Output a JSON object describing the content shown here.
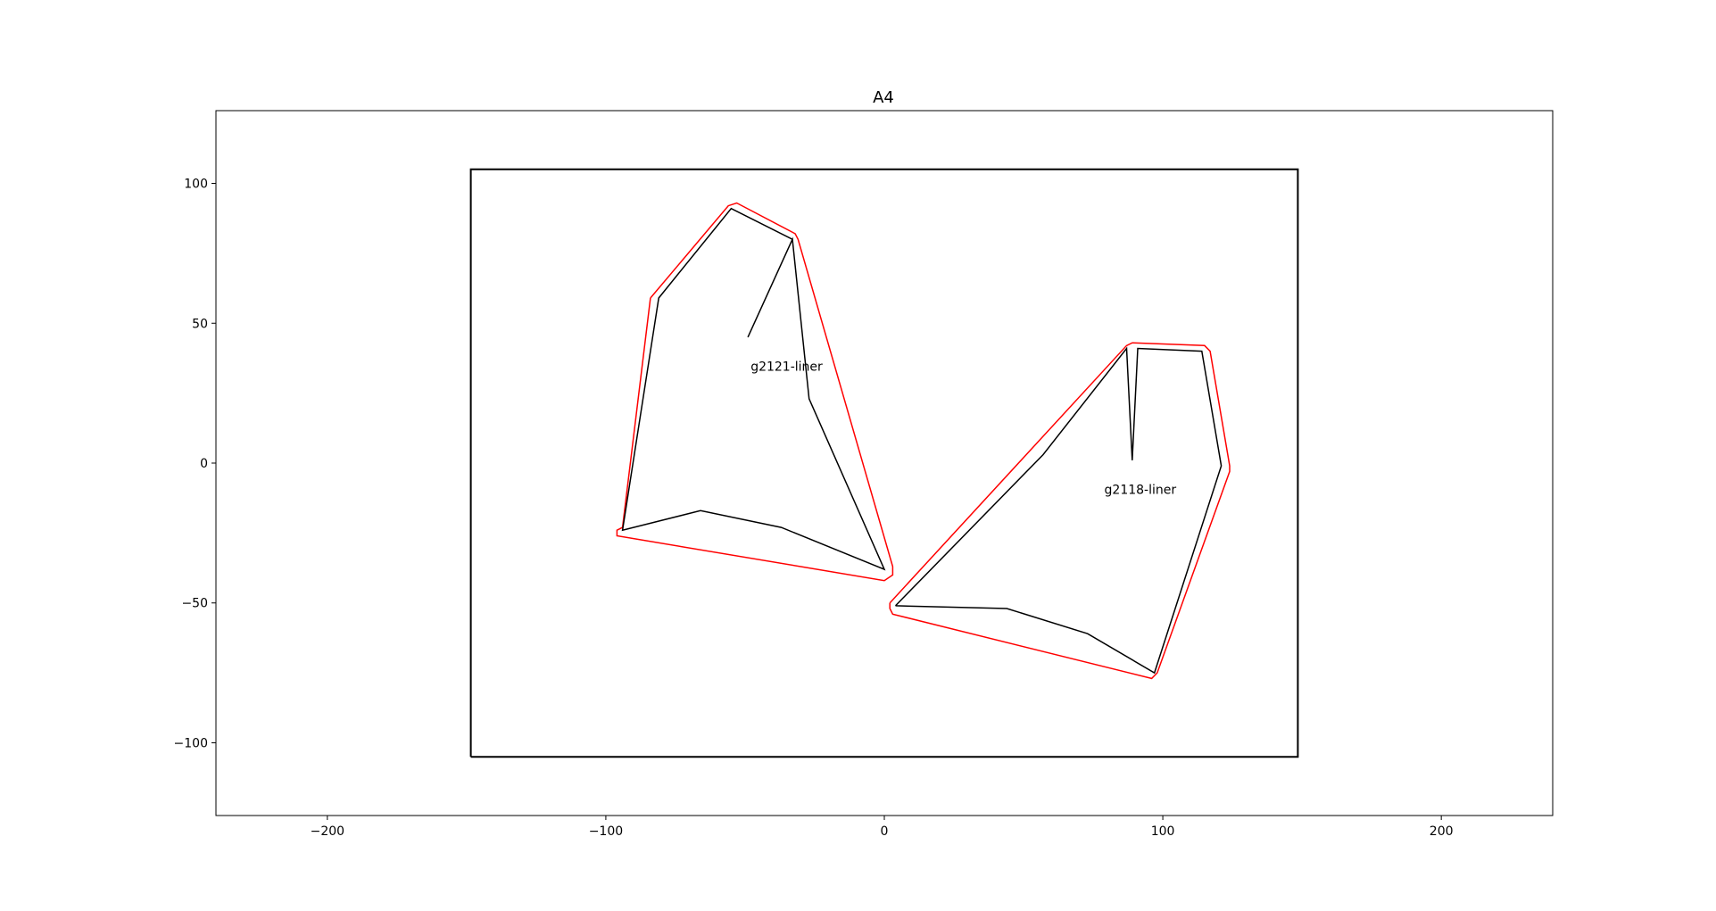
{
  "chart_data": {
    "type": "line",
    "title": "A4",
    "xlabel": "",
    "ylabel": "",
    "xlim": [
      -240,
      240
    ],
    "ylim": [
      -126,
      126
    ],
    "x_ticks": [
      -200,
      -100,
      0,
      100,
      200
    ],
    "x_tick_labels": [
      "−200",
      "−100",
      "0",
      "100",
      "200"
    ],
    "y_ticks": [
      -100,
      -50,
      0,
      50,
      100
    ],
    "y_tick_labels": [
      "−100",
      "−50",
      "0",
      "50",
      "100"
    ],
    "grid": false,
    "legend": "none",
    "colors": {
      "outline": "#000000",
      "offset": "#ff0000",
      "frame": "#000000"
    },
    "series": [
      {
        "kind": "sheet",
        "color": "#000000",
        "x": [
          -148.5,
          148.5,
          148.5,
          -148.5,
          -148.5
        ],
        "y": [
          -105,
          -105,
          105,
          105,
          -105
        ]
      },
      {
        "kind": "offset",
        "color": "#ff0000",
        "x": [
          -84,
          -56,
          -53,
          -32,
          -31,
          3,
          3,
          0,
          -96,
          -96,
          -94,
          -84
        ],
        "y": [
          59,
          92,
          93,
          82,
          80,
          -37,
          -40,
          -42,
          -26,
          -24,
          -23,
          59
        ]
      },
      {
        "kind": "outline",
        "color": "#000000",
        "x": [
          -49,
          -33,
          -55,
          -81,
          -94,
          -66,
          -37,
          0,
          -27,
          -33,
          -49
        ],
        "y": [
          45,
          80,
          91,
          59,
          -24,
          -17,
          -23,
          -38,
          23,
          80,
          45
        ]
      },
      {
        "kind": "offset",
        "color": "#ff0000",
        "x": [
          2,
          87,
          89,
          115,
          117,
          124,
          124,
          98,
          96,
          3,
          2,
          2
        ],
        "y": [
          -50,
          42,
          43,
          42,
          40,
          -1,
          -3,
          -75,
          -77,
          -54,
          -52,
          -50
        ]
      },
      {
        "kind": "outline",
        "color": "#000000",
        "x": [
          4,
          57,
          87,
          89,
          91,
          114,
          121,
          97,
          73,
          44,
          4
        ],
        "y": [
          -51,
          3,
          41,
          1,
          41,
          40,
          -1,
          -75,
          -61,
          -52,
          -51
        ]
      }
    ],
    "annotations": [
      {
        "text": "g2121-liner",
        "x": -48,
        "y": 33
      },
      {
        "text": "g2118-liner",
        "x": 79,
        "y": -11
      }
    ]
  }
}
